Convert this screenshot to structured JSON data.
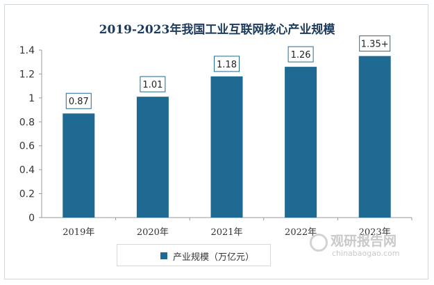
{
  "chart_data": {
    "type": "bar",
    "title": "2019-2023年我国工业互联网核心产业规模",
    "categories": [
      "2019年",
      "2020年",
      "2021年",
      "2022年",
      "2023年"
    ],
    "series": [
      {
        "name": "产业规模（万亿元）",
        "values": [
          0.87,
          1.01,
          1.18,
          1.26,
          1.35
        ],
        "labels": [
          "0.87",
          "1.01",
          "1.18",
          "1.26",
          "1.35+"
        ]
      }
    ],
    "yticks": [
      "0",
      "0.2",
      "0.4",
      "0.6",
      "0.8",
      "1",
      "1.2",
      "1.4"
    ],
    "ylim": [
      0,
      1.4
    ],
    "legend_position": "bottom",
    "bar_color": "#1e6a92",
    "grid": false
  },
  "watermark": {
    "name": "观研报告网",
    "url": "chinabaogao.com"
  }
}
